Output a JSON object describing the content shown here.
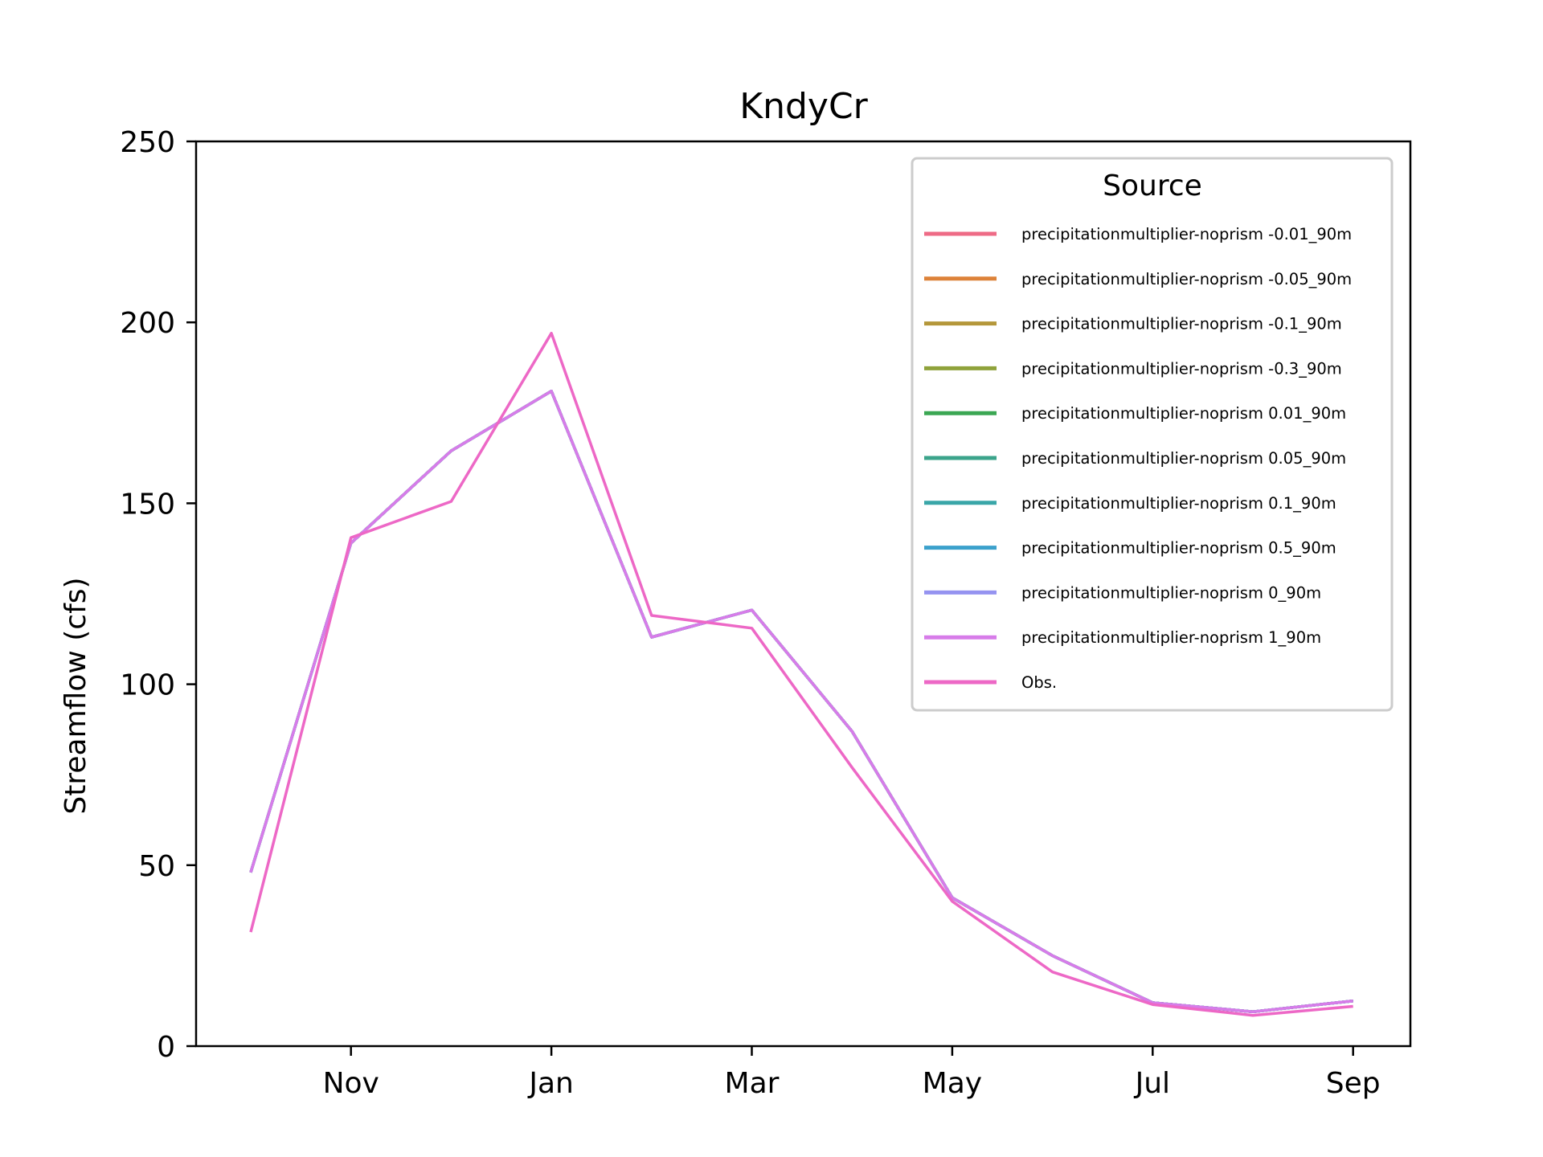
{
  "chart_data": {
    "type": "line",
    "title": "KndyCr",
    "xlabel": "",
    "ylabel": "Streamflow (cfs)",
    "ylim": [
      0,
      250
    ],
    "yticks": [
      0,
      50,
      100,
      150,
      200,
      250
    ],
    "xticks": [
      "Nov",
      "Jan",
      "Mar",
      "May",
      "Jul",
      "Sep"
    ],
    "x": [
      "2000-10-01",
      "2000-11-01",
      "2000-12-01",
      "2001-01-01",
      "2001-02-01",
      "2001-03-01",
      "2001-04-01",
      "2001-05-01",
      "2001-06-01",
      "2001-07-01",
      "2001-08-01",
      "2001-09-01"
    ],
    "grid": false,
    "legend": {
      "title": "Source",
      "position": "top-right"
    },
    "series": [
      {
        "name": "precipitationmultiplier-noprism -0.01_90m",
        "color": "#ee6b86",
        "values": [
          48,
          139,
          164.5,
          181,
          113,
          120.5,
          87,
          41,
          25,
          12,
          9.5,
          12.5
        ]
      },
      {
        "name": "precipitationmultiplier-noprism -0.05_90m",
        "color": "#dd8239",
        "values": [
          48,
          139,
          164.5,
          181,
          113,
          120.5,
          87,
          41,
          25,
          12,
          9.5,
          12.5
        ]
      },
      {
        "name": "precipitationmultiplier-noprism -0.1_90m",
        "color": "#b4973a",
        "values": [
          48,
          139,
          164.5,
          181,
          113,
          120.5,
          87,
          41,
          25,
          12,
          9.5,
          12.5
        ]
      },
      {
        "name": "precipitationmultiplier-noprism -0.3_90m",
        "color": "#8fa23b",
        "values": [
          48,
          139,
          164.5,
          181,
          113,
          120.5,
          87,
          41,
          25,
          12,
          9.5,
          12.5
        ]
      },
      {
        "name": "precipitationmultiplier-noprism 0.01_90m",
        "color": "#3ba753",
        "values": [
          48,
          139,
          164.5,
          181,
          113,
          120.5,
          87,
          41,
          25,
          12,
          9.5,
          12.5
        ]
      },
      {
        "name": "precipitationmultiplier-noprism 0.05_90m",
        "color": "#3ba48b",
        "values": [
          48,
          139,
          164.5,
          181,
          113,
          120.5,
          87,
          41,
          25,
          12,
          9.5,
          12.5
        ]
      },
      {
        "name": "precipitationmultiplier-noprism 0.1_90m",
        "color": "#3aa6a8",
        "values": [
          48,
          139,
          164.5,
          181,
          113,
          120.5,
          87,
          41,
          25,
          12,
          9.5,
          12.5
        ]
      },
      {
        "name": "precipitationmultiplier-noprism 0.5_90m",
        "color": "#3ba1cc",
        "values": [
          48,
          139,
          164.5,
          181,
          113,
          120.5,
          87,
          41,
          25,
          12,
          9.5,
          12.5
        ]
      },
      {
        "name": "precipitationmultiplier-noprism 0_90m",
        "color": "#9593f0",
        "values": [
          48,
          139,
          164.5,
          181,
          113,
          120.5,
          87,
          41,
          25,
          12,
          9.5,
          12.5
        ]
      },
      {
        "name": "precipitationmultiplier-noprism 1_90m",
        "color": "#d77ce9",
        "values": [
          48,
          139,
          164.5,
          181,
          113,
          120.5,
          87,
          41,
          25,
          12,
          9.5,
          12.5
        ]
      },
      {
        "name": "Obs.",
        "color": "#ed68c6",
        "values": [
          31.5,
          140.5,
          150.5,
          197,
          119,
          115.5,
          77,
          40,
          20.5,
          11.5,
          8.5,
          11
        ]
      }
    ]
  }
}
